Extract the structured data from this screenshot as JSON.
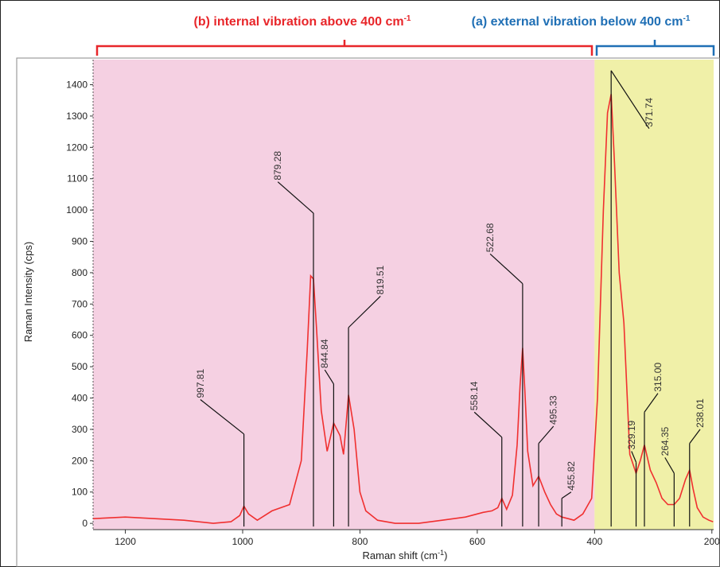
{
  "chart_data": {
    "type": "line",
    "xlabel_main": "Raman shift (cm",
    "xlabel_sup": "-1",
    "xlabel_end": ")",
    "ylabel": "Raman Intensity (cps)",
    "xlim": [
      1255,
      197
    ],
    "ylim": [
      -20,
      1480
    ],
    "x_ticks": [
      "1200",
      "1000",
      "800",
      "600",
      "400",
      "200"
    ],
    "x_tick_values": [
      1200,
      1000,
      800,
      600,
      400,
      200
    ],
    "y_ticks": [
      "0",
      "100",
      "200",
      "300",
      "400",
      "500",
      "600",
      "700",
      "800",
      "900",
      "1000",
      "1100",
      "1200",
      "1300",
      "1400"
    ],
    "y_tick_values": [
      0,
      100,
      200,
      300,
      400,
      500,
      600,
      700,
      800,
      900,
      1000,
      1100,
      1200,
      1300,
      1400
    ],
    "regions": [
      {
        "label": "(b) internal vibration above 400 cm",
        "sup": "-1",
        "from": 1255,
        "to": 400,
        "fill": "#f5d0e2",
        "label_color": "#e8262a"
      },
      {
        "label": "(a) external vibration below 400 cm",
        "sup": "-1",
        "from": 400,
        "to": 197,
        "fill": "#f0f0a8",
        "label_color": "#1f6fb5"
      }
    ],
    "series": [
      {
        "color": "#f03030",
        "x": [
          1255,
          1200,
          1150,
          1100,
          1050,
          1020,
          1005,
          997.81,
          990,
          975,
          950,
          920,
          900,
          890,
          884,
          879.28,
          874,
          866,
          856,
          844.84,
          834,
          828,
          819.51,
          810,
          800,
          790,
          770,
          740,
          700,
          660,
          620,
          590,
          575,
          565,
          558.14,
          550,
          540,
          532,
          527,
          522.68,
          519,
          514,
          505,
          495.33,
          485,
          475,
          465,
          455.82,
          445,
          435,
          420,
          405,
          395,
          385,
          378,
          371.74,
          366,
          358,
          350,
          340,
          329.19,
          322,
          315,
          305,
          295,
          285,
          275,
          264.35,
          255,
          245,
          238.01,
          232,
          225,
          215,
          205,
          198
        ],
        "y": [
          15,
          20,
          15,
          10,
          0,
          5,
          25,
          55,
          30,
          10,
          40,
          60,
          200,
          550,
          790,
          780,
          620,
          360,
          230,
          320,
          280,
          220,
          410,
          300,
          100,
          40,
          10,
          0,
          0,
          10,
          20,
          35,
          40,
          50,
          80,
          45,
          90,
          250,
          440,
          560,
          430,
          230,
          120,
          150,
          100,
          60,
          30,
          20,
          15,
          10,
          30,
          80,
          400,
          1000,
          1310,
          1370,
          1150,
          800,
          640,
          220,
          160,
          200,
          250,
          170,
          130,
          80,
          60,
          60,
          80,
          140,
          170,
          110,
          50,
          20,
          10,
          5
        ]
      }
    ],
    "peaks": [
      {
        "label": "997.81",
        "x": 997.81,
        "top": 285,
        "anchor_x": 1072,
        "anchor_y": 395
      },
      {
        "label": "879.28",
        "x": 879.28,
        "top": 990,
        "anchor_x": 940,
        "anchor_y": 1090
      },
      {
        "label": "844.84",
        "x": 844.84,
        "top": 445,
        "anchor_x": 860,
        "anchor_y": 490
      },
      {
        "label": "819.51",
        "x": 819.51,
        "top": 625,
        "anchor_x": 765,
        "anchor_y": 725
      },
      {
        "label": "558.14",
        "x": 558.14,
        "top": 275,
        "anchor_x": 605,
        "anchor_y": 355
      },
      {
        "label": "522.68",
        "x": 522.68,
        "top": 765,
        "anchor_x": 578,
        "anchor_y": 860
      },
      {
        "label": "495.33",
        "x": 495.33,
        "top": 255,
        "anchor_x": 470,
        "anchor_y": 310
      },
      {
        "label": "455.82",
        "x": 455.82,
        "top": 80,
        "anchor_x": 440,
        "anchor_y": 100
      },
      {
        "label": "371.74",
        "x": 371.74,
        "top": 1445,
        "anchor_x": 307,
        "anchor_y": 1260
      },
      {
        "label": "329.19",
        "x": 329.19,
        "top": 195,
        "anchor_x": 337,
        "anchor_y": 230
      },
      {
        "label": "315.00",
        "x": 315.0,
        "top": 355,
        "anchor_x": 292,
        "anchor_y": 415
      },
      {
        "label": "264.35",
        "x": 264.35,
        "top": 160,
        "anchor_x": 280,
        "anchor_y": 210
      },
      {
        "label": "238.01",
        "x": 238.01,
        "top": 255,
        "anchor_x": 220,
        "anchor_y": 300
      }
    ]
  }
}
